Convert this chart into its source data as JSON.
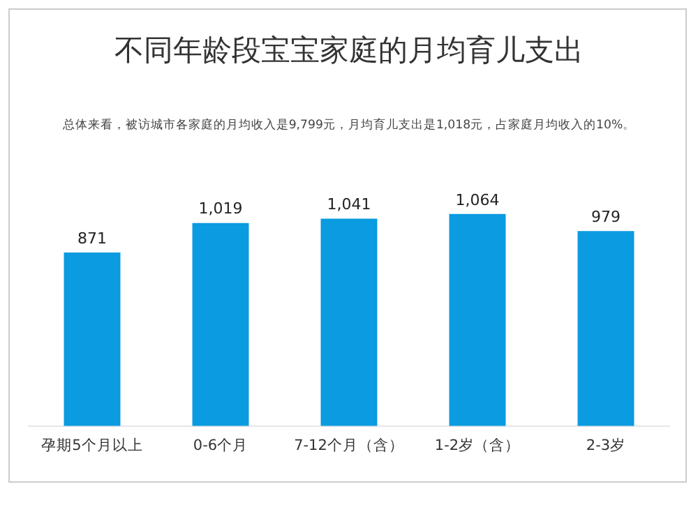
{
  "chart_data": {
    "type": "bar",
    "title": "不同年龄段宝宝家庭的月均育儿支出",
    "subtitle": "总体来看，被访城市各家庭的月均收入是9,799元，月均育儿支出是1,018元，占家庭月均收入的10%。",
    "categories": [
      "孕期5个月以上",
      "0-6个月",
      "7-12个月（含）",
      "1-2岁（含）",
      "2-3岁"
    ],
    "values": [
      871,
      1019,
      1041,
      1064,
      979
    ],
    "color": "#0a9be0",
    "data_labels": true,
    "value_labels": [
      "871",
      "1,019",
      "1,041",
      "1,064",
      "979"
    ],
    "grid": false,
    "legend": false
  }
}
